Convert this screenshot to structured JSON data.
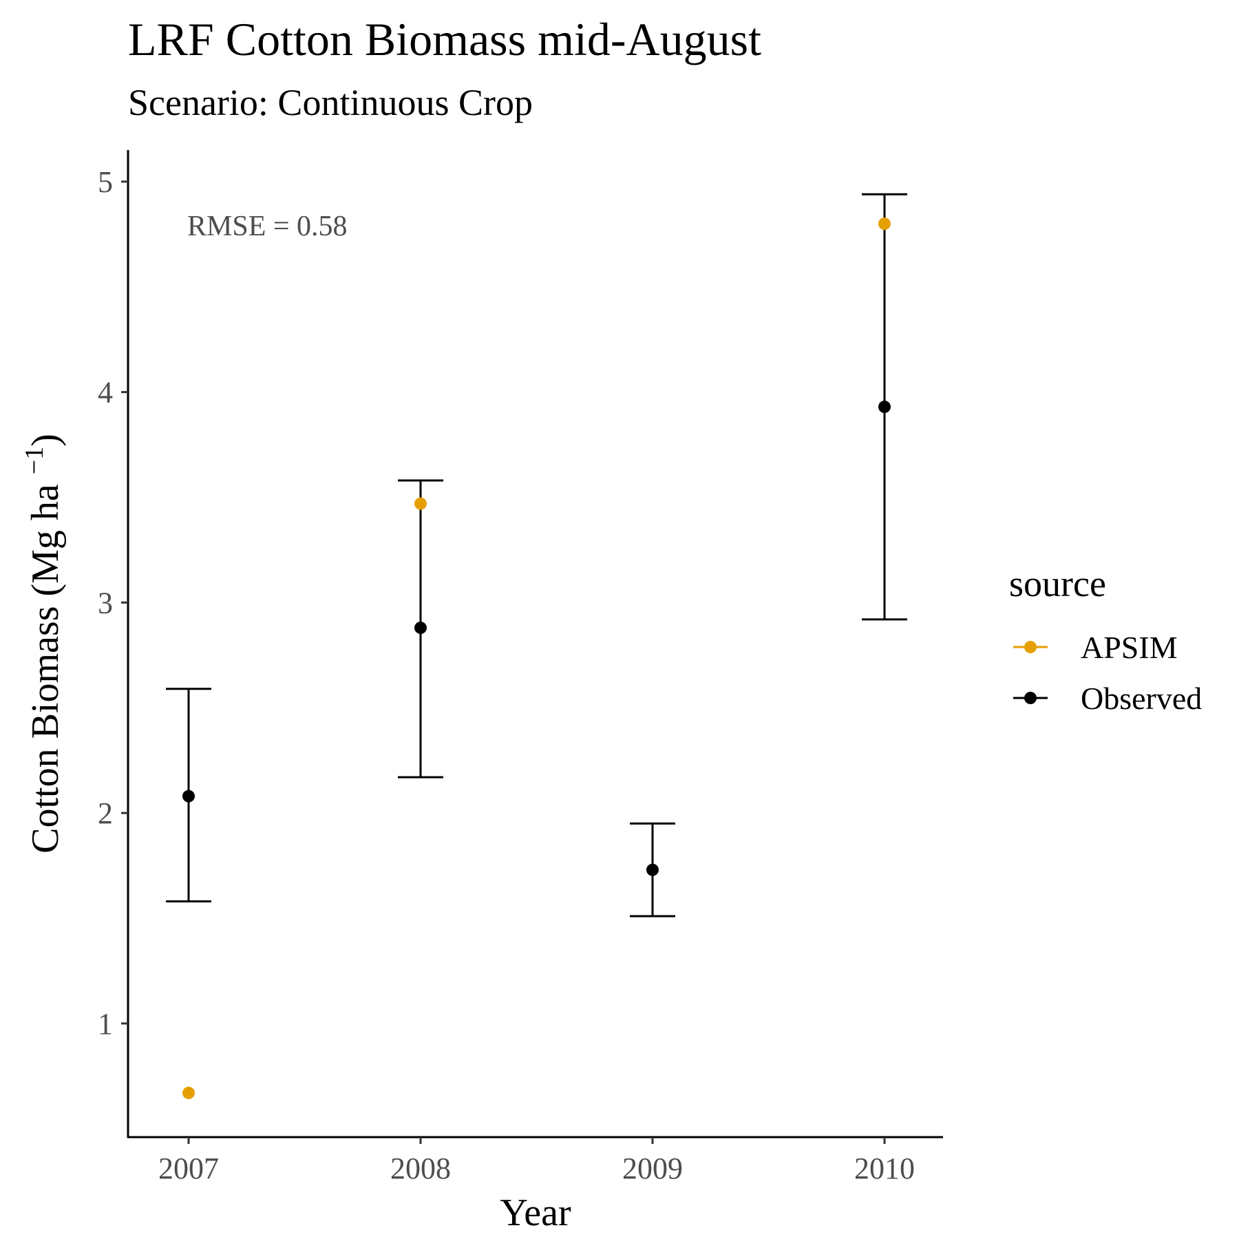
{
  "chart_data": {
    "type": "scatter",
    "title": "LRF Cotton Biomass mid-August",
    "subtitle": "Scenario: Continuous Crop",
    "xlabel": "Year",
    "ylabel": "Cotton Biomass (Mg ha",
    "ylabel_sup": "−1",
    "ylabel_close": ")",
    "categories": [
      "2007",
      "2008",
      "2009",
      "2010"
    ],
    "ylim": [
      0.46,
      5.15
    ],
    "yticks": [
      1,
      2,
      3,
      4,
      5
    ],
    "grid": false,
    "annotation": "RMSE = 0.58",
    "legend": {
      "title": "source",
      "position": "right",
      "entries": [
        "APSIM",
        "Observed"
      ]
    },
    "series": [
      {
        "name": "APSIM",
        "color": "#E69F00",
        "values": [
          0.67,
          3.47,
          null,
          4.8
        ]
      },
      {
        "name": "Observed",
        "color": "#000000",
        "values": [
          2.08,
          2.88,
          1.73,
          3.93
        ],
        "error_low": [
          1.58,
          2.17,
          1.51,
          2.92
        ],
        "error_high": [
          2.59,
          3.58,
          1.95,
          4.94
        ]
      }
    ]
  }
}
